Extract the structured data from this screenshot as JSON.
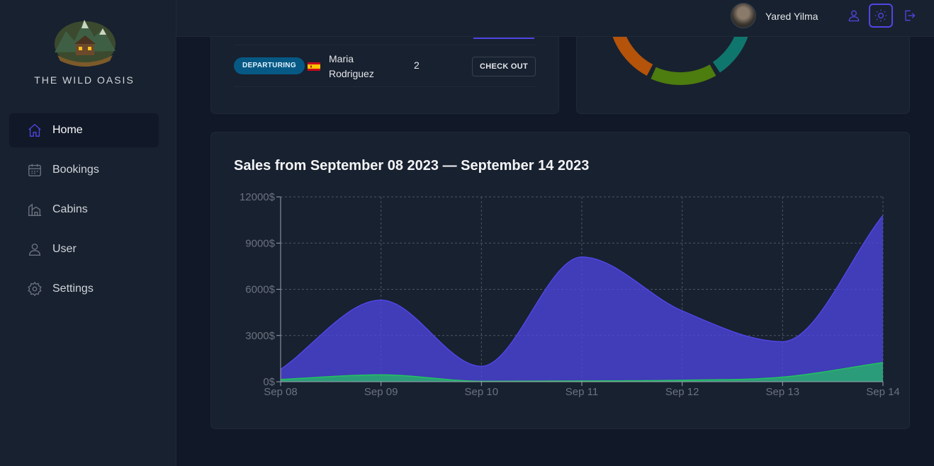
{
  "app": {
    "brand": "THE WILD OASIS"
  },
  "sidebar": {
    "items": [
      {
        "label": "Home",
        "icon": "home-icon",
        "active": true
      },
      {
        "label": "Bookings",
        "icon": "calendar-icon",
        "active": false
      },
      {
        "label": "Cabins",
        "icon": "cabin-icon",
        "active": false
      },
      {
        "label": "User",
        "icon": "user-icon",
        "active": false
      },
      {
        "label": "Settings",
        "icon": "settings-icon",
        "active": false
      }
    ]
  },
  "header": {
    "user_name": "Yared Yilma",
    "icons": [
      "user-icon",
      "sun-icon",
      "logout-icon"
    ]
  },
  "today": {
    "row": {
      "status": "DEPARTURING",
      "flag": "spain-flag-icon",
      "guest_line1": "Maria",
      "guest_line2": "Rodriguez",
      "nights": "2",
      "action": "CHECK OUT"
    }
  },
  "colors": {
    "accent": "#4f46e5",
    "total_sales": "#4f46e5",
    "extras_sales": "#22c55e"
  },
  "chart_data": {
    "type": "area",
    "title": "Sales from September 08 2023 — September 14 2023",
    "categories": [
      "Sep 08",
      "Sep 09",
      "Sep 10",
      "Sep 11",
      "Sep 12",
      "Sep 13",
      "Sep 14"
    ],
    "series": [
      {
        "values": [
          800,
          5300,
          1000,
          8100,
          4600,
          2600,
          10800
        ]
      },
      {
        "values": [
          150,
          450,
          30,
          50,
          100,
          300,
          1250
        ]
      }
    ],
    "ylim": [
      0,
      12000
    ],
    "yticks": [
      "0$",
      "3000$",
      "6000$",
      "9000$",
      "12000$"
    ],
    "ytick_values": [
      0,
      3000,
      6000,
      9000,
      12000
    ],
    "grid": true
  }
}
